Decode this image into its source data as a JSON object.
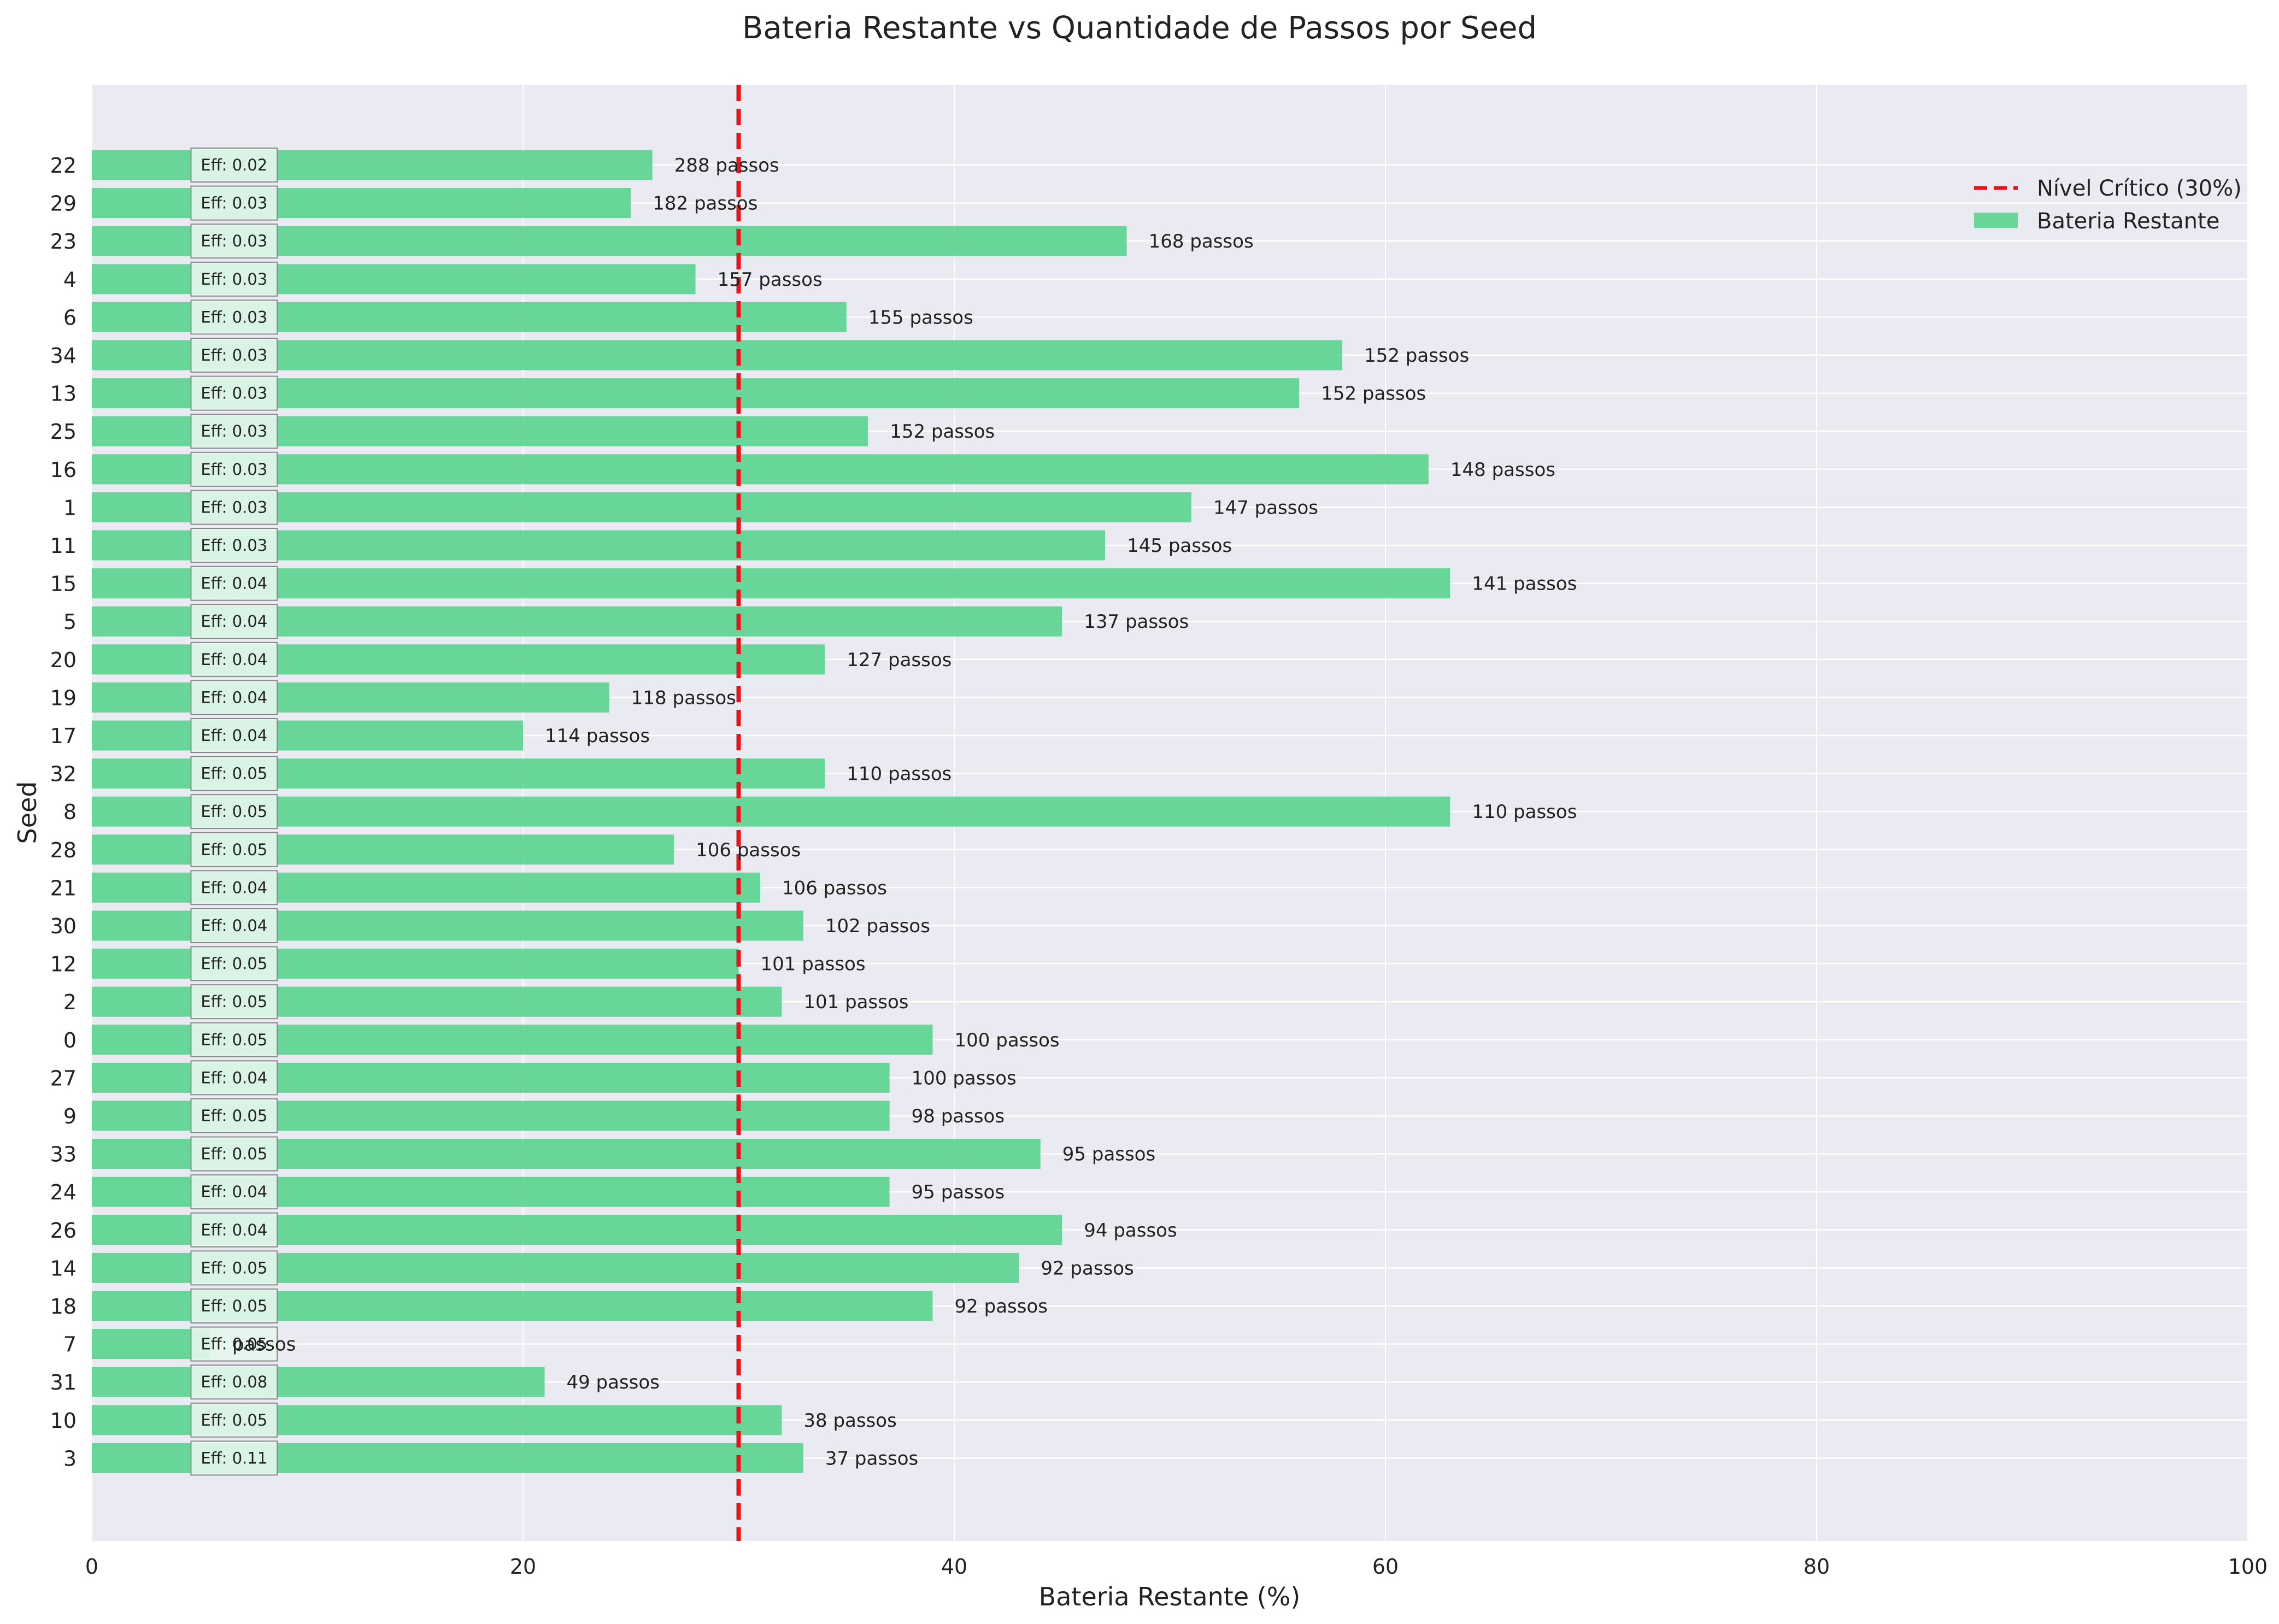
{
  "chart_data": {
    "type": "bar",
    "orientation": "horizontal",
    "title": "Bateria Restante vs Quantidade de Passos por Seed",
    "xlabel": "Bateria Restante (%)",
    "ylabel": "Seed",
    "xlim": [
      0,
      100
    ],
    "xticks": [
      0,
      20,
      40,
      60,
      80,
      100
    ],
    "grid": true,
    "legend_position": "top-right",
    "colors": {
      "background": "#eaeaf2",
      "bar": "#57d38c",
      "critical_line": "#e8141c",
      "grid": "#ffffff"
    },
    "series_name": "Bateria Restante",
    "critical_level": 30,
    "critical_label": "Nível Crítico (30%)",
    "seeds": [
      "22",
      "29",
      "23",
      "4",
      "6",
      "34",
      "13",
      "25",
      "16",
      "1",
      "11",
      "15",
      "5",
      "20",
      "19",
      "17",
      "32",
      "8",
      "28",
      "21",
      "30",
      "12",
      "2",
      "0",
      "27",
      "9",
      "33",
      "24",
      "26",
      "14",
      "18",
      "7",
      "31",
      "10",
      "3"
    ],
    "values": [
      26,
      25,
      48,
      28,
      35,
      58,
      56,
      36,
      62,
      51,
      47,
      63,
      45,
      34,
      24,
      20,
      34,
      63,
      27,
      31,
      33,
      30,
      32,
      39,
      37,
      37,
      44,
      37,
      45,
      43,
      39,
      5.5,
      21,
      32,
      33
    ],
    "step_labels": [
      "288 passos",
      "182 passos",
      "168 passos",
      "157 passos",
      "155 passos",
      "152 passos",
      "152 passos",
      "152 passos",
      "148 passos",
      "147 passos",
      "145 passos",
      "141 passos",
      "137 passos",
      "127 passos",
      "118 passos",
      "114 passos",
      "110 passos",
      "110 passos",
      "106 passos",
      "106 passos",
      "102 passos",
      "101 passos",
      "101 passos",
      "100 passos",
      "100 passos",
      "98 passos",
      "95 passos",
      "95 passos",
      "94 passos",
      "92 passos",
      "92 passos",
      "passos",
      "49 passos",
      "38 passos",
      "37 passos"
    ],
    "eff_labels": [
      "Eff: 0.02",
      "Eff: 0.03",
      "Eff: 0.03",
      "Eff: 0.03",
      "Eff: 0.03",
      "Eff: 0.03",
      "Eff: 0.03",
      "Eff: 0.03",
      "Eff: 0.03",
      "Eff: 0.03",
      "Eff: 0.03",
      "Eff: 0.04",
      "Eff: 0.04",
      "Eff: 0.04",
      "Eff: 0.04",
      "Eff: 0.04",
      "Eff: 0.05",
      "Eff: 0.05",
      "Eff: 0.05",
      "Eff: 0.04",
      "Eff: 0.04",
      "Eff: 0.05",
      "Eff: 0.05",
      "Eff: 0.05",
      "Eff: 0.04",
      "Eff: 0.05",
      "Eff: 0.05",
      "Eff: 0.04",
      "Eff: 0.04",
      "Eff: 0.05",
      "Eff: 0.05",
      "Eff: 0.05",
      "Eff: 0.08",
      "Eff: 0.05",
      "Eff: 0.11"
    ]
  }
}
